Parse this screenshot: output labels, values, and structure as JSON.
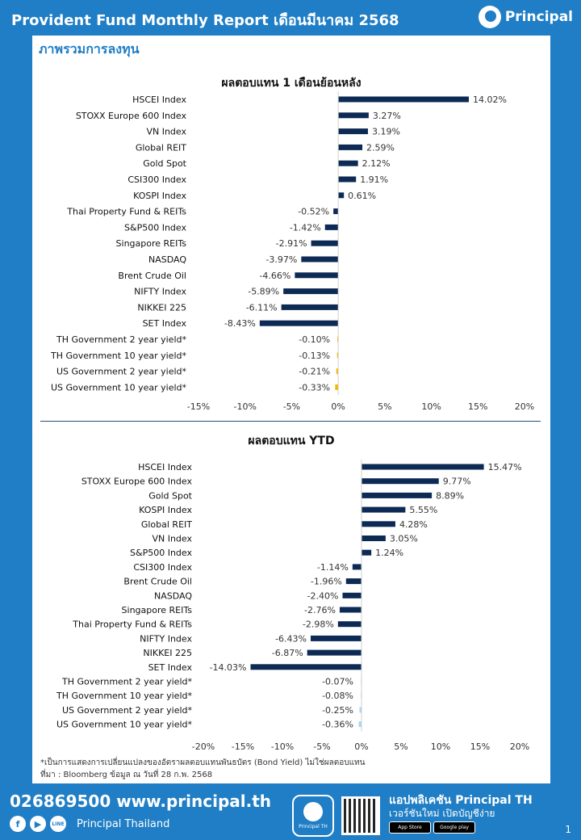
{
  "header": {
    "title": "Provident Fund Monthly Report เดือนมีนาคม 2568",
    "logo_text": "Principal"
  },
  "section_title": "ภาพรวมการลงทุน",
  "chart_data": [
    {
      "type": "bar",
      "orientation": "horizontal",
      "title": "ผลตอบแทน 1 เดือนย้อนหลัง",
      "categories": [
        "HSCEI Index",
        "STOXX Europe 600 Index",
        "VN Index",
        "Global REIT",
        "Gold Spot",
        "CSI300 Index",
        "KOSPI Index",
        "Thai Property Fund & REITs",
        "S&P500 Index",
        "Singapore REITs",
        "NASDAQ",
        "Brent Crude Oil",
        "NIFTY Index",
        "NIKKEI 225",
        "SET Index",
        "TH Government 2 year yield*",
        "TH Government 10 year yield*",
        "US Government 2 year yield*",
        "US Government 10 year yield*"
      ],
      "values": [
        14.02,
        3.27,
        3.19,
        2.59,
        2.12,
        1.91,
        0.61,
        -0.52,
        -1.42,
        -2.91,
        -3.97,
        -4.66,
        -5.89,
        -6.11,
        -8.43,
        -0.1,
        -0.13,
        -0.21,
        -0.33
      ],
      "value_labels": [
        "14.02%",
        "3.27%",
        "3.19%",
        "2.59%",
        "2.12%",
        "1.91%",
        "0.61%",
        "-0.52%",
        "-1.42%",
        "-2.91%",
        "-3.97%",
        "-4.66%",
        "-5.89%",
        "-6.11%",
        "-8.43%",
        "-0.10%",
        "-0.13%",
        "-0.21%",
        "-0.33%"
      ],
      "xlim": [
        -15,
        20
      ],
      "ticks": [
        -15,
        -10,
        -5,
        0,
        5,
        10,
        15,
        20
      ],
      "tick_labels": [
        "-15%",
        "-10%",
        "-5%",
        "0%",
        "5%",
        "10%",
        "15%",
        "20%"
      ],
      "bar_color": "#0d2a55",
      "yield_color": "#f5b800",
      "yield_count": 4
    },
    {
      "type": "bar",
      "orientation": "horizontal",
      "title": "ผลตอบแทน YTD",
      "categories": [
        "HSCEI Index",
        "STOXX Europe 600 Index",
        "Gold Spot",
        "KOSPI Index",
        "Global REIT",
        "VN Index",
        "S&P500 Index",
        "CSI300 Index",
        "Brent Crude Oil",
        "NASDAQ",
        "Singapore REITs",
        "Thai Property Fund & REITs",
        "NIFTY Index",
        "NIKKEI 225",
        "SET Index",
        "TH Government 2 year yield*",
        "TH Government 10 year yield*",
        "US Government 2 year yield*",
        "US Government 10 year yield*"
      ],
      "values": [
        15.47,
        9.77,
        8.89,
        5.55,
        4.28,
        3.05,
        1.24,
        -1.14,
        -1.96,
        -2.4,
        -2.76,
        -2.98,
        -6.43,
        -6.87,
        -14.03,
        -0.07,
        -0.08,
        -0.25,
        -0.36
      ],
      "value_labels": [
        "15.47%",
        "9.77%",
        "8.89%",
        "5.55%",
        "4.28%",
        "3.05%",
        "1.24%",
        "-1.14%",
        "-1.96%",
        "-2.40%",
        "-2.76%",
        "-2.98%",
        "-6.43%",
        "-6.87%",
        "-14.03%",
        "-0.07%",
        "-0.08%",
        "-0.25%",
        "-0.36%"
      ],
      "xlim": [
        -20,
        20
      ],
      "ticks": [
        -20,
        -15,
        -10,
        -5,
        0,
        5,
        10,
        15,
        20
      ],
      "tick_labels": [
        "-20%",
        "-15%",
        "-10%",
        "-5%",
        "0%",
        "5%",
        "10%",
        "15%",
        "20%"
      ],
      "bar_color": "#0d2a55",
      "yield_color": "#a9d6f5",
      "yield_count": 4
    }
  ],
  "footnote": {
    "line1": "*เป็นการแสดงการเปลี่ยนแปลงของอัตราผลตอบแทนพันธบัตร (Bond Yield) ไม่ใช่ผลตอบแทน",
    "line2": "ที่มา : Bloomberg ข้อมูล ณ วันที่ 28 ก.พ. 2568"
  },
  "footer": {
    "contact": "026869500 www.principal.th",
    "brand": "Principal Thailand",
    "social": [
      "f",
      "▶",
      "LINE"
    ],
    "app_icon_label": "Principal TH",
    "app_title": "แอปพลิเคชัน Principal TH",
    "app_subtitle": "เวอร์ชันใหม่ เปิดบัญชีง่าย",
    "app_store": "App Store",
    "google_play": "Google play",
    "page_number": "1"
  }
}
